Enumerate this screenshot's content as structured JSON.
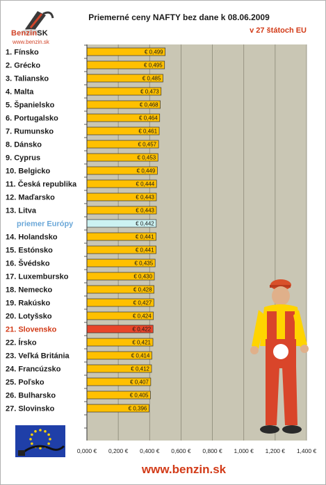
{
  "header": {
    "title": "Priemerné ceny NAFTY bez dane k 08.06.2009",
    "subtitle": "v 27 štátoch EU"
  },
  "logo": {
    "word": "Benzin",
    "suffix": "SK",
    "url": "www.benzin.sk"
  },
  "footer": {
    "url": "www.benzin.sk"
  },
  "colors": {
    "bar": "#ffc000",
    "highlight": "#e8452a",
    "average": "#ccf2f2",
    "plot_bg": "#c9c6b4",
    "accent_text": "#d23a17"
  },
  "chart_data": {
    "type": "bar",
    "orientation": "horizontal",
    "title": "Priemerné ceny NAFTY bez dane k 08.06.2009",
    "subtitle": "v 27 štátoch EU",
    "categories": [
      "1. Fínsko",
      "2. Grécko",
      "3. Taliansko",
      "4. Malta",
      "5. Španielsko",
      "6. Portugalsko",
      "7. Rumunsko",
      "8. Dánsko",
      "9. Cyprus",
      "10. Belgicko",
      "11. Česká republika",
      "12. Maďarsko",
      "13. Litva",
      "priemer Európy",
      "14. Holandsko",
      "15. Estónsko",
      "16. Švédsko",
      "17. Luxembursko",
      "18. Nemecko",
      "19. Rakúsko",
      "20. Lotyšsko",
      "21. Slovensko",
      "22. Írsko",
      "23. Veľká Británia",
      "24. Francúzsko",
      "25. Poľsko",
      "26. Bulharsko",
      "27. Slovinsko"
    ],
    "values": [
      0.499,
      0.495,
      0.485,
      0.473,
      0.468,
      0.464,
      0.461,
      0.457,
      0.453,
      0.449,
      0.444,
      0.443,
      0.443,
      0.442,
      0.441,
      0.441,
      0.435,
      0.43,
      0.428,
      0.427,
      0.424,
      0.422,
      0.421,
      0.414,
      0.412,
      0.407,
      0.405,
      0.396
    ],
    "value_labels": [
      "€ 0,499",
      "€ 0,495",
      "€ 0,485",
      "€ 0,473",
      "€ 0,468",
      "€ 0,464",
      "€ 0,461",
      "€ 0,457",
      "€ 0,453",
      "€ 0,449",
      "€ 0,444",
      "€ 0,443",
      "€ 0,443",
      "€ 0,442",
      "€ 0,441",
      "€ 0,441",
      "€ 0,435",
      "€ 0,430",
      "€ 0,428",
      "€ 0,427",
      "€ 0,424",
      "€ 0,422",
      "€ 0,421",
      "€ 0,414",
      "€ 0,412",
      "€ 0,407",
      "€ 0,405",
      "€ 0,396"
    ],
    "highlight_category": "21. Slovensko",
    "average_category": "priemer Európy",
    "xlim": [
      0,
      1.4
    ],
    "x_ticks": [
      0,
      0.2,
      0.4,
      0.6,
      0.8,
      1.0,
      1.2,
      1.4
    ],
    "x_tick_labels": [
      "0,000 €",
      "0,200 €",
      "0,400 €",
      "0,600 €",
      "0,800 €",
      "1,000 €",
      "1,200 €",
      "1,400 €"
    ],
    "grid": true
  }
}
